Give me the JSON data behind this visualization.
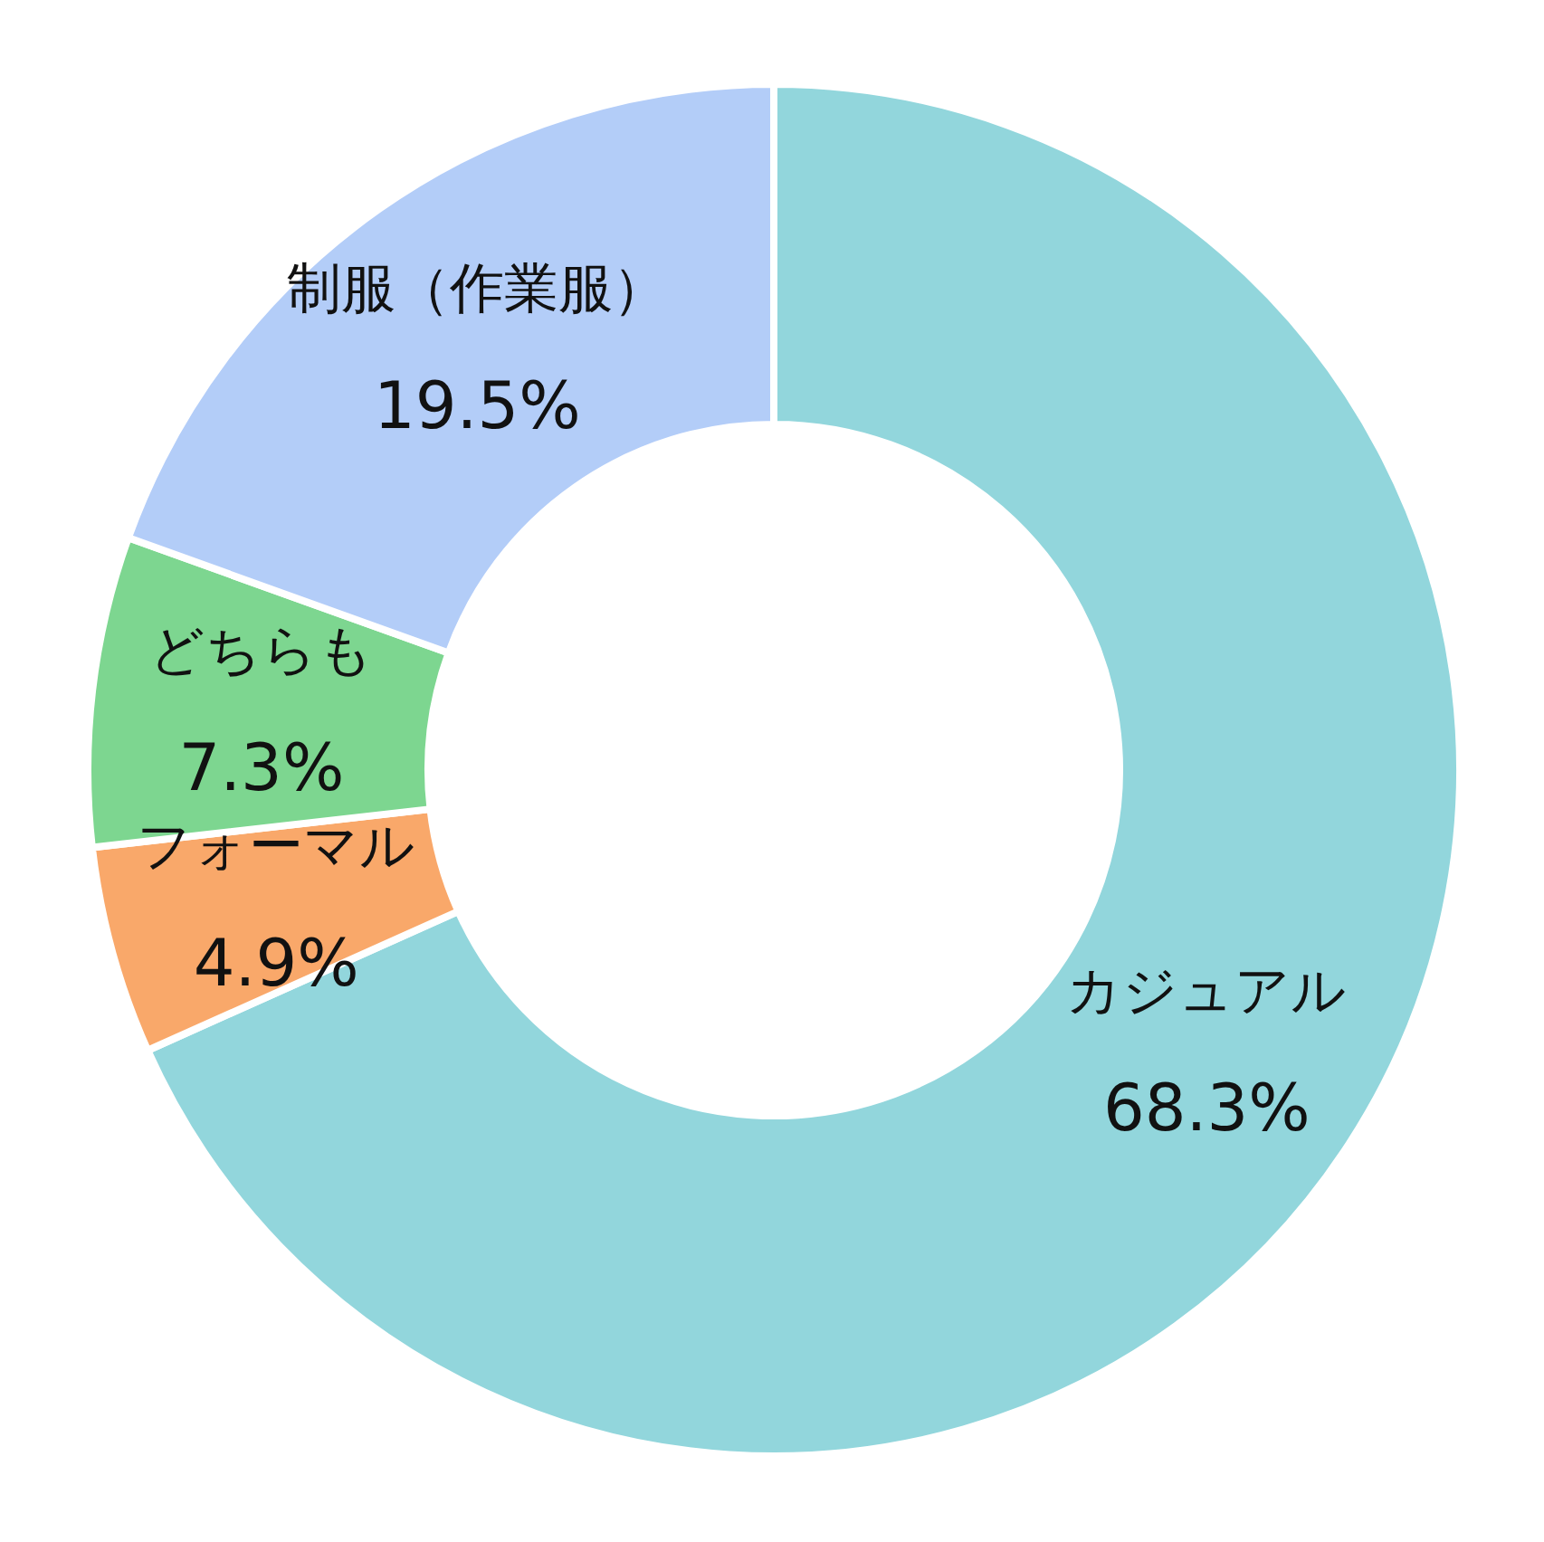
{
  "chart_data": {
    "type": "donut",
    "categories": [
      "カジュアル",
      "フォーマル",
      "どちらも",
      "制服（作業服）"
    ],
    "values": [
      68.3,
      4.9,
      7.3,
      19.5
    ],
    "value_labels": [
      "68.3%",
      "4.9%",
      "7.3%",
      "19.5%"
    ],
    "colors": [
      "#92d6dc",
      "#f9a86a",
      "#7dd690",
      "#b3cdf8"
    ]
  }
}
